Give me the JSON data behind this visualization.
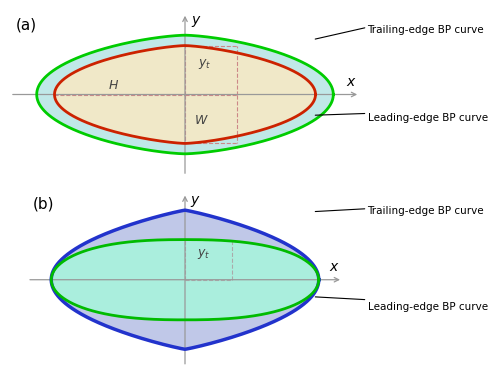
{
  "fig_width": 5.0,
  "fig_height": 3.78,
  "dpi": 100,
  "panel_a": {
    "label": "(a)",
    "trailing_color": "#00cc00",
    "trailing_fill": "#c8f0c8",
    "leading_color": "#cc2200",
    "leading_fill": "#f0e8c8",
    "gap_fill": "#c0e8e8",
    "dashed_color": "#cc8888",
    "H_label": "H",
    "W_label": "W",
    "yt_label": "$y_t$",
    "trailing_text": "Trailing-edge BP curve",
    "leading_text": "Leading-edge BP curve",
    "axis_color": "#999999"
  },
  "panel_b": {
    "label": "(b)",
    "trailing_color": "#2233cc",
    "trailing_fill": "#c0c8e8",
    "leading_color": "#00bb00",
    "leading_fill": "#aaeedd",
    "dashed_color": "#aaaaaa",
    "yt_label": "$y_t$",
    "trailing_text": "Trailing-edge BP curve",
    "leading_text": "Leading-edge BP curve",
    "axis_color": "#999999"
  }
}
